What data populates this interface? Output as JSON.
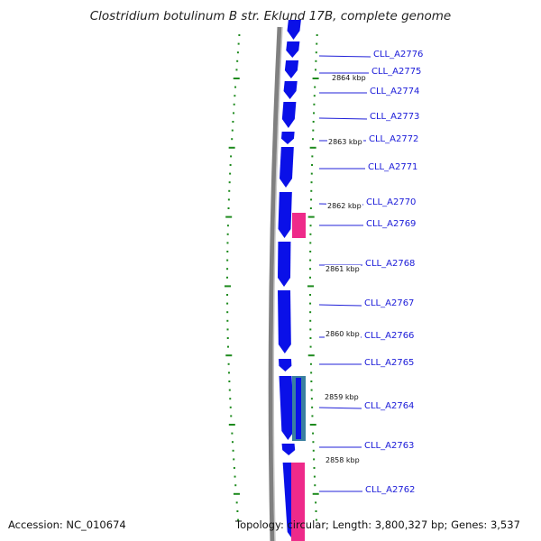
{
  "title": "Clostridium botulinum B str. Eklund 17B, complete genome",
  "footer": {
    "accession": "Accession: NC_010674",
    "summary": "Topology: circular; Length: 3,800,327 bp; Genes: 3,537"
  },
  "colors": {
    "forward_gene": "#0a10e8",
    "feature_pink": "#ee2a8a",
    "feature_teal": "#3a7fa0",
    "backbone": "#808080",
    "ticks": "#1d8a1d",
    "label": "#1a1ad8"
  },
  "genes": [
    {
      "id": "CLL_A2776"
    },
    {
      "id": "CLL_A2775"
    },
    {
      "id": "CLL_A2774"
    },
    {
      "id": "CLL_A2773"
    },
    {
      "id": "CLL_A2772"
    },
    {
      "id": "CLL_A2771"
    },
    {
      "id": "CLL_A2770"
    },
    {
      "id": "CLL_A2769"
    },
    {
      "id": "CLL_A2768"
    },
    {
      "id": "CLL_A2767"
    },
    {
      "id": "CLL_A2766"
    },
    {
      "id": "CLL_A2765"
    },
    {
      "id": "CLL_A2764"
    },
    {
      "id": "CLL_A2763"
    },
    {
      "id": "CLL_A2762"
    }
  ],
  "scale_labels": [
    "2864 kbp",
    "2863 kbp",
    "2862 kbp",
    "2861 kbp",
    "2860 kbp",
    "2859 kbp",
    "2858 kbp"
  ]
}
